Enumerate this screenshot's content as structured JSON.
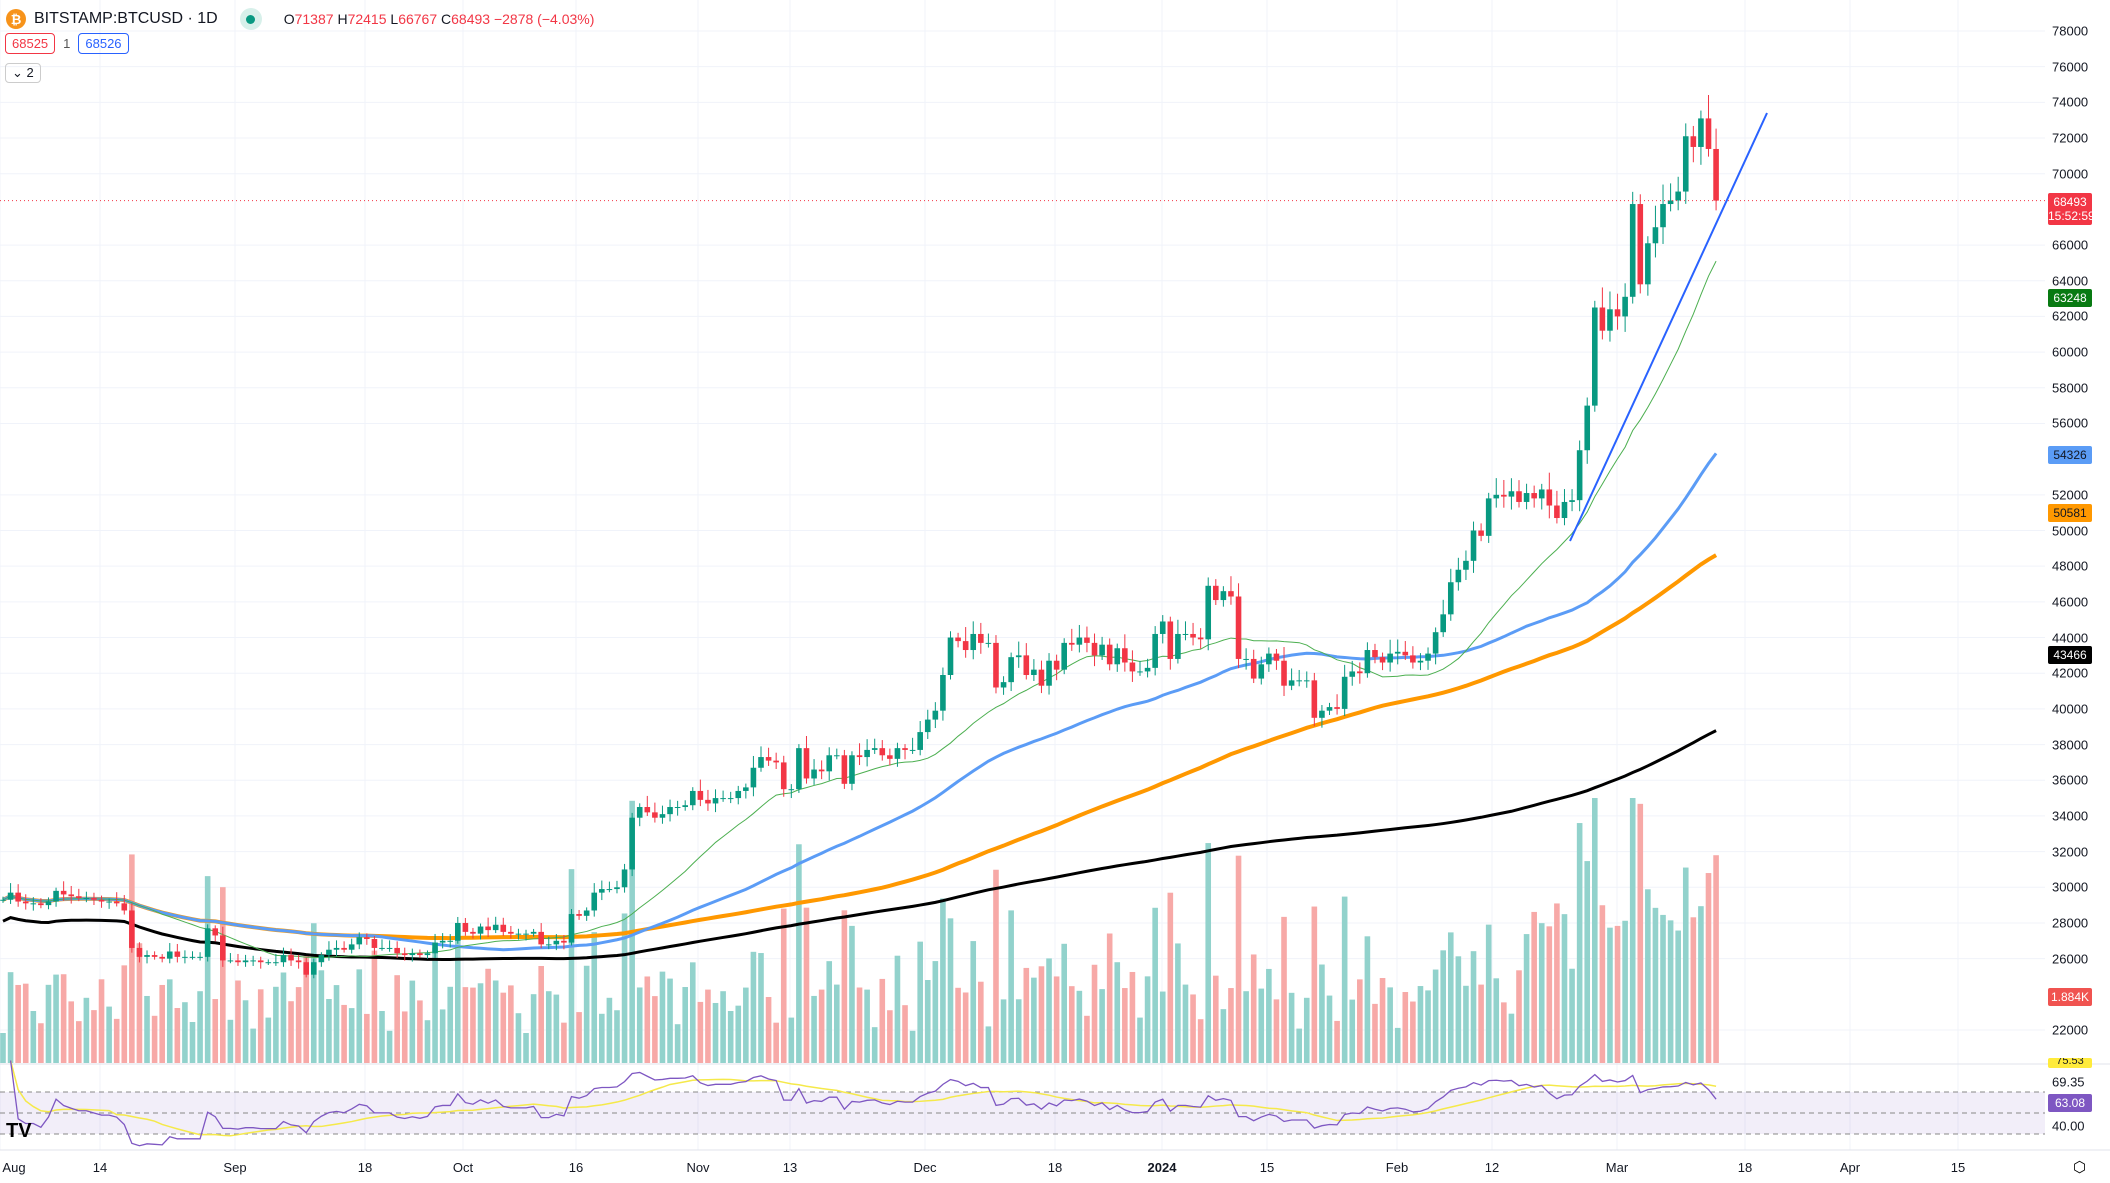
{
  "header": {
    "symbol": "BITSTAMP:BTCUSD · 1D",
    "open_label": "O",
    "open": "71387",
    "high_label": "H",
    "high": "72415",
    "low_label": "L",
    "low": "66767",
    "close_label": "C",
    "close": "68493",
    "change": "−2878 (−4.03%)",
    "bid": "68525",
    "spread": "1",
    "ask": "68526",
    "collapse": "2"
  },
  "colors": {
    "up": "#089981",
    "down": "#f23645",
    "ma20": "#4caf50",
    "ma50": "#5b9cf6",
    "ma100": "#ff9800",
    "ma200": "#000000",
    "rsi": "#7e57c2",
    "rsi_ma": "#f5e94a",
    "trendline": "#2962ff"
  },
  "price_axis": {
    "ticks": [
      "78000",
      "76000",
      "74000",
      "72000",
      "70000",
      "66000",
      "64000",
      "62000",
      "60000",
      "58000",
      "56000",
      "52000",
      "50000",
      "48000",
      "46000",
      "44000",
      "42000",
      "40000",
      "38000",
      "36000",
      "34000",
      "32000",
      "30000",
      "28000",
      "26000",
      "22000"
    ],
    "last_price": "68493",
    "countdown": "15:52:59",
    "ma20": "63248",
    "ma50": "54326",
    "ma100": "50581",
    "ma200": "43466",
    "volume": "1.884K"
  },
  "rsi_axis": {
    "ma": "75.53",
    "upper": "69.35",
    "rsi": "63.08",
    "lower": "40.00"
  },
  "time_axis": [
    "Aug",
    "14",
    "Sep",
    "18",
    "Oct",
    "16",
    "Nov",
    "13",
    "Dec",
    "18",
    "2024",
    "15",
    "Feb",
    "12",
    "Mar",
    "18",
    "Apr",
    "15"
  ],
  "chart_data": {
    "type": "candlestick",
    "start": "2023-08-01",
    "end": "2024-03-14",
    "ylim": [
      20000,
      79000
    ],
    "grid": true,
    "closes": [
      29300,
      29700,
      29200,
      29100,
      29100,
      29000,
      29200,
      29800,
      29600,
      29500,
      29400,
      29400,
      29300,
      29200,
      29200,
      29100,
      28700,
      26600,
      26100,
      26200,
      26100,
      26000,
      26400,
      26100,
      26100,
      26100,
      26100,
      27700,
      27300,
      25900,
      25900,
      25800,
      25900,
      25900,
      25800,
      25800,
      25800,
      26200,
      25900,
      25800,
      25100,
      25800,
      26200,
      26500,
      26600,
      26500,
      26800,
      27200,
      27100,
      26600,
      26600,
      26600,
      26300,
      26200,
      26300,
      26200,
      26300,
      26900,
      27000,
      27000,
      28000,
      27500,
      27400,
      27800,
      27600,
      27900,
      27500,
      27400,
      27400,
      27400,
      27500,
      26800,
      26800,
      27000,
      26900,
      28500,
      28400,
      28700,
      29700,
      29900,
      29900,
      30000,
      31000,
      33900,
      34500,
      34200,
      33900,
      34100,
      34500,
      34500,
      34600,
      35400,
      34900,
      34700,
      35000,
      35000,
      35000,
      35400,
      35600,
      36700,
      37300,
      37100,
      37000,
      35500,
      35500,
      37800,
      36100,
      36600,
      36500,
      37400,
      37400,
      35800,
      37400,
      37300,
      37700,
      37800,
      37400,
      37200,
      37800,
      37700,
      37700,
      38700,
      39400,
      39900,
      41900,
      44000,
      43800,
      43300,
      44200,
      43700,
      43700,
      41200,
      41500,
      42900,
      43000,
      41900,
      42200,
      41300,
      42700,
      42200,
      43700,
      43600,
      44000,
      43700,
      43000,
      43600,
      42500,
      43400,
      42600,
      42100,
      42100,
      42300,
      44200,
      44900,
      42800,
      44200,
      44200,
      44000,
      43900,
      46900,
      46100,
      46600,
      46300,
      42800,
      42800,
      41700,
      42500,
      43100,
      42700,
      41300,
      41600,
      41600,
      41600,
      39500,
      39900,
      40100,
      40000,
      41800,
      42100,
      42000,
      43300,
      42900,
      42600,
      43100,
      43200,
      43000,
      42600,
      42700,
      43100,
      44300,
      45300,
      47100,
      47800,
      48300,
      50000,
      49700,
      51800,
      52000,
      51900,
      52200,
      51600,
      52100,
      51800,
      52300,
      51400,
      50700,
      51600,
      51700,
      54500,
      57000,
      62500,
      61200,
      62400,
      62000,
      63100,
      68300,
      63800,
      66100,
      67000,
      68300,
      68500,
      69000,
      72100,
      71500,
      73100,
      71387,
      68493
    ],
    "indicators": [
      "MA20",
      "MA50",
      "MA100",
      "MA200",
      "Volume",
      "RSI 14"
    ]
  }
}
